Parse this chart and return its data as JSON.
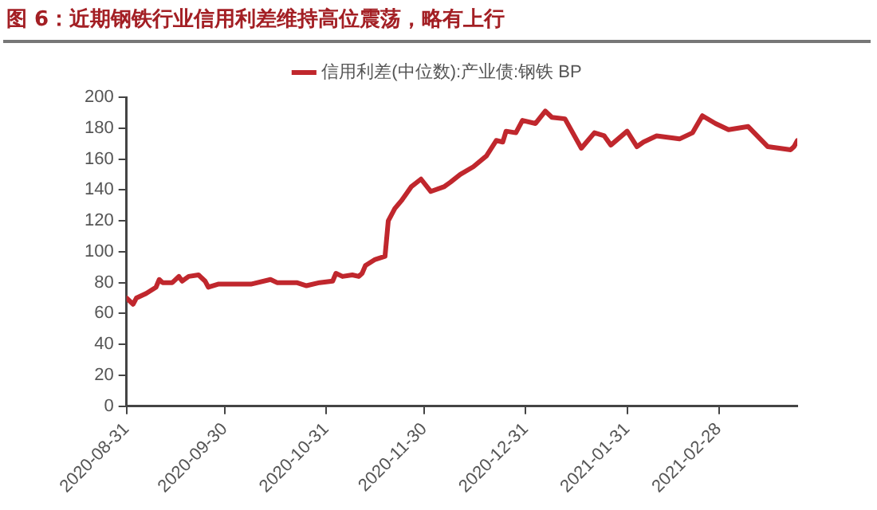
{
  "chart_data": {
    "type": "line",
    "title": "图 6：近期钢铁行业信用利差维持高位震荡，略有上行",
    "x": [
      "2020-08-31",
      "2020-09-02",
      "2020-09-03",
      "2020-09-06",
      "2020-09-09",
      "2020-09-10",
      "2020-09-11",
      "2020-09-14",
      "2020-09-16",
      "2020-09-17",
      "2020-09-19",
      "2020-09-22",
      "2020-09-24",
      "2020-09-25",
      "2020-09-28",
      "2020-10-01",
      "2020-10-08",
      "2020-10-14",
      "2020-10-16",
      "2020-10-22",
      "2020-10-25",
      "2020-10-29",
      "2020-11-02",
      "2020-11-03",
      "2020-11-05",
      "2020-11-08",
      "2020-11-10",
      "2020-11-11",
      "2020-11-12",
      "2020-11-15",
      "2020-11-18",
      "2020-11-19",
      "2020-11-21",
      "2020-11-23",
      "2020-11-26",
      "2020-11-29",
      "2020-12-02",
      "2020-12-06",
      "2020-12-08",
      "2020-12-11",
      "2020-12-15",
      "2020-12-19",
      "2020-12-22",
      "2020-12-24",
      "2020-12-25",
      "2020-12-28",
      "2020-12-30",
      "2021-01-03",
      "2021-01-06",
      "2021-01-08",
      "2021-01-12",
      "2021-01-17",
      "2021-01-21",
      "2021-01-24",
      "2021-01-26",
      "2021-01-31",
      "2021-02-03",
      "2021-02-05",
      "2021-02-09",
      "2021-02-16",
      "2021-02-20",
      "2021-02-23",
      "2021-02-27",
      "2021-03-03",
      "2021-03-09",
      "2021-03-15",
      "2021-03-22",
      "2021-03-23",
      "2021-03-24"
    ],
    "series": [
      {
        "name": "信用利差(中位数):产业债:钢铁 BP",
        "color": "#c0272d",
        "values": [
          70,
          66,
          70,
          73,
          77,
          82,
          80,
          80,
          84,
          81,
          84,
          85,
          81,
          77,
          79,
          79,
          79,
          82,
          80,
          80,
          78,
          80,
          81,
          86,
          84,
          85,
          84,
          86,
          91,
          95,
          97,
          120,
          128,
          133,
          142,
          147,
          139,
          142,
          145,
          150,
          155,
          162,
          172,
          171,
          178,
          177,
          185,
          183,
          191,
          187,
          186,
          167,
          177,
          175,
          169,
          178,
          168,
          171,
          175,
          173,
          177,
          188,
          183,
          179,
          181,
          168,
          166,
          168,
          172
        ]
      }
    ],
    "xlim": [
      "2020-08-31",
      "2021-03-24"
    ],
    "xticks": [
      "2020-08-31",
      "2020-09-30",
      "2020-10-31",
      "2020-11-30",
      "2020-12-31",
      "2021-01-31",
      "2021-02-28"
    ],
    "ylim": [
      0,
      200
    ],
    "yticks": [
      0,
      20,
      40,
      60,
      80,
      100,
      120,
      140,
      160,
      180,
      200
    ],
    "grid": false,
    "legend": "top",
    "marker": "none",
    "line_style": "solid"
  }
}
